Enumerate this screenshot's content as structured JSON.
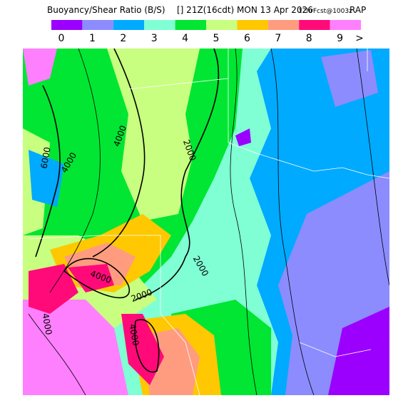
{
  "title": "Buoyancy/Shear Ratio (B/S)",
  "time": "[] 21Z(16cdt) MON 13 Apr 2026",
  "forecast": "12hrFcst@1003z",
  "model": "RAP",
  "legend": {
    "items": [
      {
        "label": "0",
        "color": "#9b00ff"
      },
      {
        "label": "1",
        "color": "#8c8cff"
      },
      {
        "label": "2",
        "color": "#00aaff"
      },
      {
        "label": "3",
        "color": "#80ffd4"
      },
      {
        "label": "4",
        "color": "#00e632"
      },
      {
        "label": "5",
        "color": "#c8ff80"
      },
      {
        "label": "6",
        "color": "#ffc800"
      },
      {
        "label": "7",
        "color": "#ff9c80"
      },
      {
        "label": "8",
        "color": "#ff0a78"
      },
      {
        "label": "9",
        "color": "#ff80ff"
      }
    ],
    "more": ">"
  },
  "contour_labels": [
    "4000",
    "6000",
    "4000",
    "2000",
    "2000",
    "4000",
    "2000",
    "4000",
    "4000"
  ]
}
